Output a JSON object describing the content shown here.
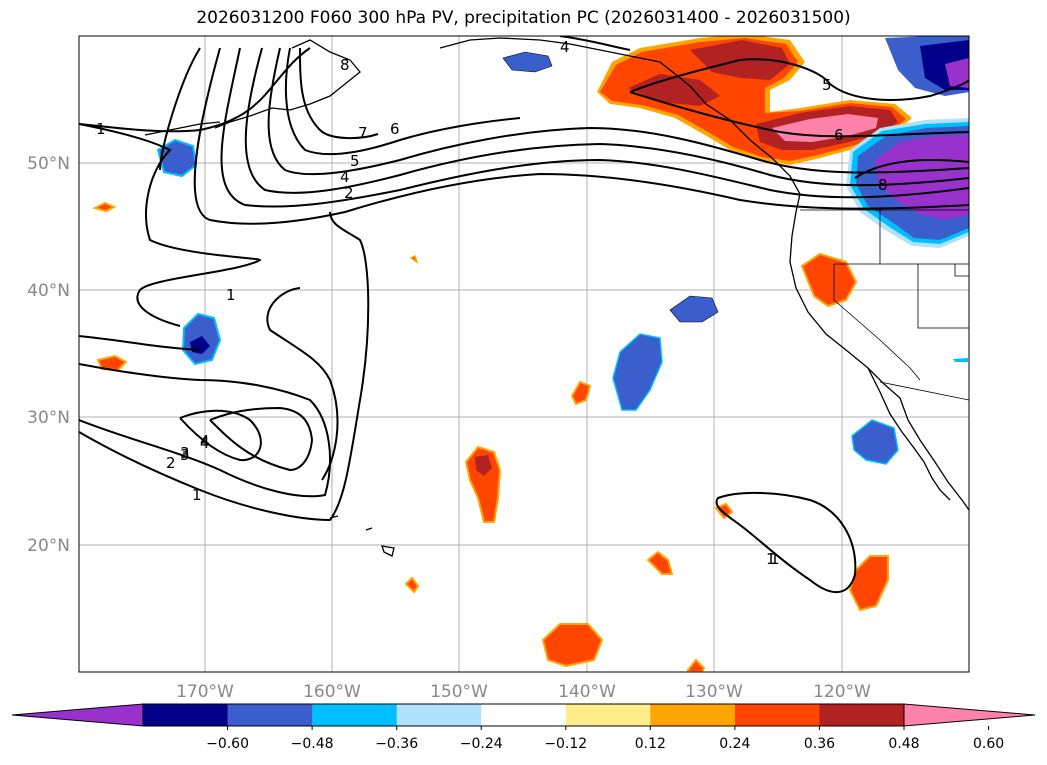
{
  "title": "2026031200 F060 300 hPa PV, precipitation PC (2026031400 - 2026031500)",
  "map": {
    "longitude_labels": [
      "170°W",
      "160°W",
      "150°W",
      "140°W",
      "130°W",
      "120°W"
    ],
    "latitude_labels": [
      "50°N",
      "40°N",
      "30°N",
      "20°N"
    ],
    "gridlines": true,
    "pv_contour_labels": [
      "1",
      "2",
      "3",
      "4",
      "4",
      "5",
      "6",
      "7",
      "8",
      "1",
      "1",
      "1",
      "2",
      "3",
      "4",
      "4",
      "5",
      "6",
      "8",
      "1"
    ]
  },
  "colorbar": {
    "ticks": [
      "−0.60",
      "−0.48",
      "−0.36",
      "−0.24",
      "−0.12",
      "0.12",
      "0.24",
      "0.36",
      "0.48",
      "0.60"
    ],
    "colors": [
      "#9932cc",
      "#00008b",
      "#3a5fcd",
      "#00bfff",
      "#b0e2ff",
      "#ffffff",
      "#ffec8b",
      "#ffa500",
      "#ff4500",
      "#b22222",
      "#ff82ab"
    ],
    "extend": "both"
  },
  "colors": {
    "purple": "#9932cc",
    "navy": "#00008b",
    "blue": "#3a5fcd",
    "cyan": "#00bfff",
    "lightblue": "#b0e2ff",
    "yellow": "#ffec8b",
    "orange": "#ffa500",
    "redorange": "#ff4500",
    "firebrick": "#b22222",
    "pink": "#ff82ab"
  }
}
